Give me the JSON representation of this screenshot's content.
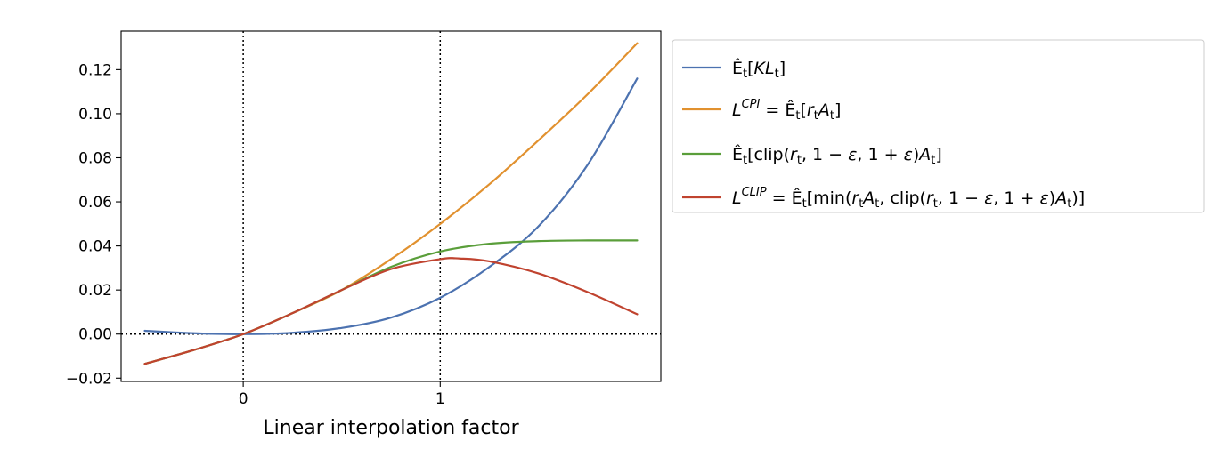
{
  "chart_data": {
    "type": "line",
    "xlabel": "Linear interpolation factor",
    "ylabel": "",
    "xlim": [
      -0.62,
      2.12
    ],
    "ylim": [
      -0.0215,
      0.1375
    ],
    "x_ticks": [
      0,
      1
    ],
    "x_tick_labels": [
      "0",
      "1"
    ],
    "y_ticks": [
      -0.02,
      0.0,
      0.02,
      0.04,
      0.06,
      0.08,
      0.1,
      0.12
    ],
    "y_tick_labels": [
      "−0.02",
      "0.00",
      "0.02",
      "0.04",
      "0.06",
      "0.08",
      "0.10",
      "0.12"
    ],
    "reference_lines": {
      "vertical_x": [
        0,
        1
      ],
      "horizontal_y": [
        0
      ],
      "style": "dotted"
    },
    "grid": false,
    "legend_position": "outside-right-top",
    "series": [
      {
        "name": "Êₜ[KLₜ]",
        "color": "#4c72b0",
        "x": [
          -0.5,
          -0.25,
          0,
          0.25,
          0.5,
          0.75,
          1.0,
          1.25,
          1.5,
          1.75,
          2.0
        ],
        "y": [
          0.0015,
          0.0004,
          0.0,
          0.0006,
          0.0028,
          0.0075,
          0.0165,
          0.0305,
          0.049,
          0.077,
          0.116
        ]
      },
      {
        "name": "L^CPI = Êₜ[rₜAₜ]",
        "color": "#e1912f",
        "x": [
          -0.5,
          -0.25,
          0,
          0.25,
          0.5,
          0.75,
          1.0,
          1.25,
          1.5,
          1.75,
          2.0
        ],
        "y": [
          -0.0135,
          -0.0072,
          0.0,
          0.0095,
          0.02,
          0.034,
          0.05,
          0.068,
          0.088,
          0.109,
          0.132
        ]
      },
      {
        "name": "Êₜ[clip(rₜ, 1 − ε, 1 + ε)Aₜ]",
        "color": "#5a9e3a",
        "x": [
          -0.5,
          -0.25,
          0,
          0.25,
          0.5,
          0.75,
          1.0,
          1.25,
          1.5,
          1.75,
          2.0
        ],
        "y": [
          -0.0135,
          -0.0072,
          0.0,
          0.0095,
          0.02,
          0.0305,
          0.0375,
          0.041,
          0.0422,
          0.0425,
          0.0425
        ]
      },
      {
        "name": "L^CLIP = Êₜ[min(rₜAₜ, clip(rₜ, 1 − ε, 1 + ε)Aₜ)]",
        "color": "#c0432f",
        "x": [
          -0.5,
          -0.25,
          0,
          0.25,
          0.5,
          0.75,
          1.0,
          1.1,
          1.25,
          1.5,
          1.75,
          2.0
        ],
        "y": [
          -0.0135,
          -0.0072,
          0.0,
          0.0095,
          0.02,
          0.0295,
          0.034,
          0.0343,
          0.033,
          0.0275,
          0.019,
          0.009
        ]
      }
    ]
  }
}
